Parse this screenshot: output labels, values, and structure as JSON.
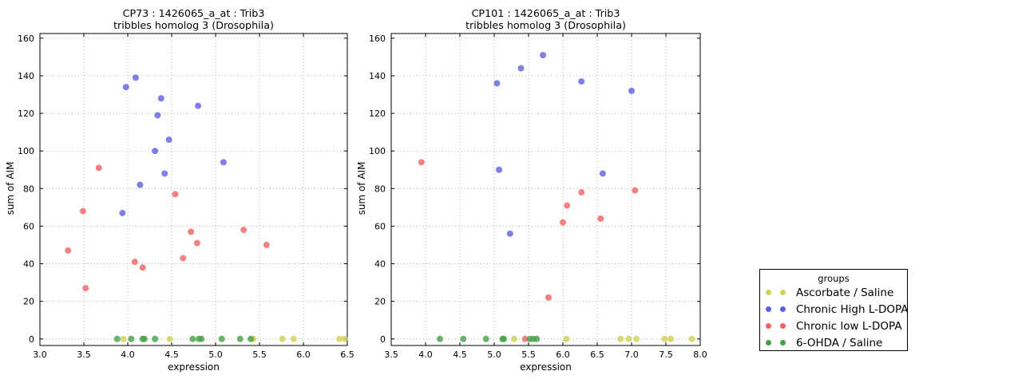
{
  "figure": {
    "background": "#ffffff"
  },
  "legend": {
    "title": "groups",
    "entries": [
      {
        "label": "Ascorbate / Saline",
        "color": "#d2d254"
      },
      {
        "label": "Chronic High L-DOPA",
        "color": "#5f5fde"
      },
      {
        "label": "Chronic low L-DOPA",
        "color": "#f06262"
      },
      {
        "label": "6-OHDA / Saline",
        "color": "#46a046"
      }
    ]
  },
  "chart_data": [
    {
      "type": "scatter",
      "title": "CP73 : 1426065_a_at : Trib3",
      "subtitle": "tribbles homolog 3 (Drosophila)",
      "xlabel": "expression",
      "ylabel": "sum of AIM",
      "xlim": [
        3.0,
        6.5
      ],
      "ylim": [
        0,
        160
      ],
      "xticks": [
        "3.0",
        "3.5",
        "4.0",
        "4.5",
        "5.0",
        "5.5",
        "6.0",
        "6.5"
      ],
      "yticks": [
        0,
        20,
        40,
        60,
        80,
        100,
        120,
        140,
        160
      ],
      "grid": true,
      "legend_position": "outside-right",
      "series": [
        {
          "name": "Ascorbate / Saline",
          "color": "#d2d254",
          "points": [
            [
              3.95,
              0
            ],
            [
              4.48,
              0
            ],
            [
              5.43,
              0
            ],
            [
              5.76,
              0
            ],
            [
              5.89,
              0
            ],
            [
              6.41,
              0
            ],
            [
              6.47,
              0
            ]
          ]
        },
        {
          "name": "Chronic High L-DOPA",
          "color": "#5f5fde",
          "points": [
            [
              3.94,
              67
            ],
            [
              3.98,
              134
            ],
            [
              4.09,
              139
            ],
            [
              4.14,
              82
            ],
            [
              4.31,
              100
            ],
            [
              4.34,
              119
            ],
            [
              4.38,
              128
            ],
            [
              4.42,
              88
            ],
            [
              4.47,
              106
            ],
            [
              4.8,
              124
            ],
            [
              5.09,
              94
            ]
          ]
        },
        {
          "name": "Chronic low L-DOPA",
          "color": "#f06262",
          "points": [
            [
              3.32,
              47
            ],
            [
              3.49,
              68
            ],
            [
              3.52,
              27
            ],
            [
              3.67,
              91
            ],
            [
              4.08,
              41
            ],
            [
              4.17,
              38
            ],
            [
              4.54,
              77
            ],
            [
              4.63,
              43
            ],
            [
              4.72,
              57
            ],
            [
              4.79,
              51
            ],
            [
              5.32,
              58
            ],
            [
              5.58,
              50
            ]
          ]
        },
        {
          "name": "6-OHDA / Saline",
          "color": "#46a046",
          "points": [
            [
              3.88,
              0
            ],
            [
              4.04,
              0
            ],
            [
              4.17,
              0
            ],
            [
              4.19,
              0
            ],
            [
              4.31,
              0
            ],
            [
              4.74,
              0
            ],
            [
              4.81,
              0
            ],
            [
              4.84,
              0
            ],
            [
              5.07,
              0
            ],
            [
              5.28,
              0
            ],
            [
              5.4,
              0
            ]
          ]
        }
      ]
    },
    {
      "type": "scatter",
      "title": "CP101 : 1426065_a_at : Trib3",
      "subtitle": "tribbles homolog 3 (Drosophila)",
      "xlabel": "expression",
      "ylabel": "sum of AIM",
      "xlim": [
        3.5,
        8.0
      ],
      "ylim": [
        0,
        160
      ],
      "xticks": [
        "3.5",
        "4.0",
        "4.5",
        "5.0",
        "5.5",
        "6.0",
        "6.5",
        "7.0",
        "7.5",
        "8.0"
      ],
      "yticks": [
        0,
        20,
        40,
        60,
        80,
        100,
        120,
        140,
        160
      ],
      "grid": true,
      "legend_position": "outside-right",
      "series": [
        {
          "name": "Ascorbate / Saline",
          "color": "#d2d254",
          "points": [
            [
              5.29,
              0
            ],
            [
              6.05,
              0
            ],
            [
              6.84,
              0
            ],
            [
              6.96,
              0
            ],
            [
              7.07,
              0
            ],
            [
              7.48,
              0
            ],
            [
              7.57,
              0
            ],
            [
              7.88,
              0
            ]
          ]
        },
        {
          "name": "Chronic High L-DOPA",
          "color": "#5f5fde",
          "points": [
            [
              5.04,
              136
            ],
            [
              5.07,
              90
            ],
            [
              5.23,
              56
            ],
            [
              5.39,
              144
            ],
            [
              5.71,
              151
            ],
            [
              6.27,
              137
            ],
            [
              6.58,
              88
            ],
            [
              7.0,
              132
            ]
          ]
        },
        {
          "name": "Chronic low L-DOPA",
          "color": "#f06262",
          "points": [
            [
              3.94,
              94
            ],
            [
              5.45,
              0
            ],
            [
              5.79,
              22
            ],
            [
              6.0,
              62
            ],
            [
              6.06,
              71
            ],
            [
              6.27,
              78
            ],
            [
              6.55,
              64
            ],
            [
              7.05,
              79
            ]
          ]
        },
        {
          "name": "6-OHDA / Saline",
          "color": "#46a046",
          "points": [
            [
              4.21,
              0
            ],
            [
              4.55,
              0
            ],
            [
              4.88,
              0
            ],
            [
              5.12,
              0
            ],
            [
              5.14,
              0
            ],
            [
              5.52,
              0
            ],
            [
              5.57,
              0
            ],
            [
              5.62,
              0
            ]
          ]
        }
      ]
    }
  ]
}
